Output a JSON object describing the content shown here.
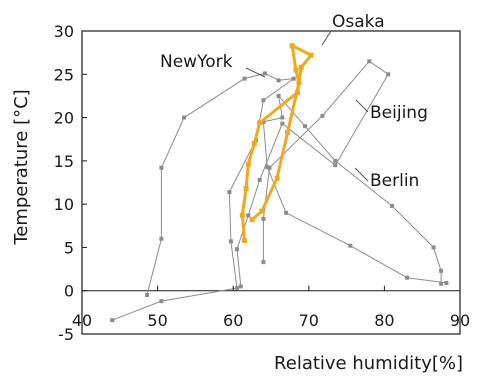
{
  "chart_data": {
    "type": "line",
    "xlabel": "Relative humidity[%]",
    "ylabel": "Temperature [°C]",
    "xlim": [
      40,
      90
    ],
    "ylim": [
      -5,
      30
    ],
    "x_ticks": [
      "40",
      "50",
      "60",
      "70",
      "80",
      "90"
    ],
    "y_ticks": [
      "-5",
      "0",
      "5",
      "10",
      "15",
      "20",
      "25",
      "30"
    ],
    "x_tick_values": [
      40,
      50,
      60,
      70,
      80,
      90
    ],
    "y_tick_values": [
      -5,
      0,
      5,
      10,
      15,
      20,
      25,
      30
    ],
    "grid": false,
    "legend": "none",
    "series": [
      {
        "name": "Osaka",
        "color": "#f0a91e",
        "highlight": true,
        "points": [
          [
            61.5,
            5.8
          ],
          [
            61.2,
            8.7
          ],
          [
            61.7,
            11.8
          ],
          [
            62.0,
            14.6
          ],
          [
            62.8,
            17.0
          ],
          [
            63.5,
            19.4
          ],
          [
            68.5,
            22.9
          ],
          [
            69.0,
            25.8
          ],
          [
            70.3,
            27.2
          ],
          [
            67.8,
            28.3
          ],
          [
            68.3,
            25.5
          ],
          [
            68.7,
            24.0
          ],
          [
            67.2,
            18.3
          ],
          [
            65.8,
            13.0
          ],
          [
            63.8,
            9.2
          ],
          [
            62.5,
            8.2
          ]
        ]
      },
      {
        "name": "NewYork",
        "color": "#8c8c8c",
        "highlight": false,
        "points": [
          [
            48.6,
            -0.5
          ],
          [
            50.5,
            6.0
          ],
          [
            50.5,
            14.2
          ],
          [
            53.5,
            20.0
          ],
          [
            61.5,
            24.5
          ],
          [
            64.2,
            25.1
          ],
          [
            66.0,
            24.3
          ],
          [
            68.0,
            24.5
          ],
          [
            64.0,
            22.0
          ],
          [
            63.0,
            17.4
          ],
          [
            59.5,
            11.4
          ],
          [
            59.7,
            5.7
          ],
          [
            60.5,
            0.3
          ],
          [
            50.5,
            -1.2
          ],
          [
            44.0,
            -3.4
          ]
        ]
      },
      {
        "name": "Beijing",
        "color": "#8c8c8c",
        "highlight": false,
        "points": [
          [
            64.0,
            3.3
          ],
          [
            64.0,
            8.3
          ],
          [
            64.8,
            14.2
          ],
          [
            71.8,
            20.2
          ],
          [
            78.0,
            26.5
          ],
          [
            80.5,
            25.0
          ],
          [
            73.5,
            14.5
          ],
          [
            66.5,
            19.3
          ],
          [
            63.5,
            12.8
          ],
          [
            62.0,
            8.7
          ],
          [
            60.5,
            4.8
          ],
          [
            61.0,
            0.5
          ]
        ]
      },
      {
        "name": "Berlin",
        "color": "#8c8c8c",
        "highlight": false,
        "points": [
          [
            87.5,
            0.8
          ],
          [
            87.5,
            2.3
          ],
          [
            86.5,
            5.0
          ],
          [
            81.0,
            9.8
          ],
          [
            73.5,
            15.0
          ],
          [
            69.5,
            19.0
          ],
          [
            66.0,
            22.5
          ],
          [
            66.5,
            20.0
          ],
          [
            64.0,
            19.5
          ],
          [
            64.5,
            14.3
          ],
          [
            67.0,
            9.0
          ],
          [
            75.5,
            5.2
          ],
          [
            83.0,
            1.5
          ],
          [
            88.2,
            0.9
          ]
        ]
      }
    ],
    "annotations": [
      {
        "text": "Osaka",
        "series": "Osaka"
      },
      {
        "text": "NewYork",
        "series": "NewYork"
      },
      {
        "text": "Beijing",
        "series": "Beijing"
      },
      {
        "text": "Berlin",
        "series": "Berlin"
      }
    ]
  }
}
